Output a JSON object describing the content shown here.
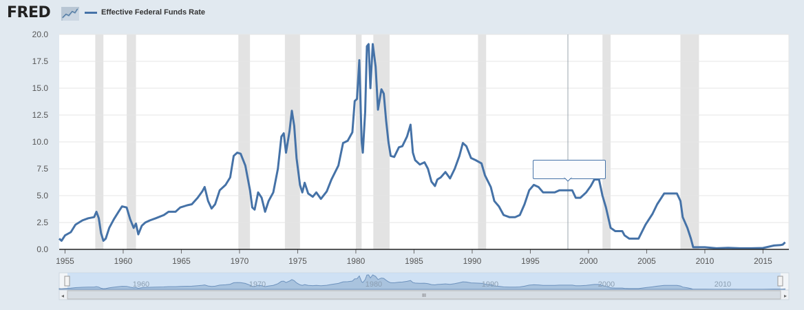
{
  "header": {
    "logo_text": "FRED",
    "legend_label": "Effective Federal Funds Rate",
    "series_color": "#4572a7"
  },
  "navigator": {
    "labels": [
      "1960",
      "1970",
      "1980",
      "1990",
      "2000",
      "2010"
    ],
    "scroll_grip": "III"
  },
  "chart_data": {
    "type": "line",
    "xlim": [
      1954.5,
      2016.9
    ],
    "ylim": [
      0,
      20
    ],
    "y_ticks": [
      "0.0",
      "2.5",
      "5.0",
      "7.5",
      "10.0",
      "12.5",
      "15.0",
      "17.5",
      "20.0"
    ],
    "x_ticks": [
      "1955",
      "1960",
      "1965",
      "1970",
      "1975",
      "1980",
      "1985",
      "1990",
      "1995",
      "2000",
      "2005",
      "2010",
      "2015"
    ],
    "grid": true,
    "legend": "top-left",
    "recessions": [
      [
        1957.6,
        1958.3
      ],
      [
        1960.3,
        1961.1
      ],
      [
        1969.9,
        1970.9
      ],
      [
        1973.9,
        1975.2
      ],
      [
        1980.0,
        1980.5
      ],
      [
        1981.5,
        1982.9
      ],
      [
        1990.5,
        1991.2
      ],
      [
        2001.2,
        2001.9
      ],
      [
        2007.9,
        2009.5
      ]
    ],
    "series": [
      {
        "values": [
          [
            1954.5,
            1.0
          ],
          [
            1954.7,
            0.8
          ],
          [
            1955.0,
            1.3
          ],
          [
            1955.5,
            1.6
          ],
          [
            1955.9,
            2.3
          ],
          [
            1956.5,
            2.7
          ],
          [
            1957.0,
            2.9
          ],
          [
            1957.5,
            3.0
          ],
          [
            1957.7,
            3.5
          ],
          [
            1957.9,
            2.9
          ],
          [
            1958.1,
            1.5
          ],
          [
            1958.3,
            0.8
          ],
          [
            1958.5,
            1.0
          ],
          [
            1958.8,
            2.0
          ],
          [
            1959.2,
            2.8
          ],
          [
            1959.6,
            3.5
          ],
          [
            1959.9,
            4.0
          ],
          [
            1960.3,
            3.9
          ],
          [
            1960.6,
            2.8
          ],
          [
            1960.9,
            2.0
          ],
          [
            1961.1,
            2.4
          ],
          [
            1961.3,
            1.4
          ],
          [
            1961.6,
            2.2
          ],
          [
            1961.9,
            2.5
          ],
          [
            1962.3,
            2.7
          ],
          [
            1962.8,
            2.9
          ],
          [
            1963.5,
            3.2
          ],
          [
            1963.9,
            3.5
          ],
          [
            1964.5,
            3.5
          ],
          [
            1964.9,
            3.9
          ],
          [
            1965.5,
            4.1
          ],
          [
            1965.9,
            4.2
          ],
          [
            1966.4,
            4.8
          ],
          [
            1966.8,
            5.4
          ],
          [
            1967.0,
            5.8
          ],
          [
            1967.3,
            4.5
          ],
          [
            1967.6,
            3.8
          ],
          [
            1967.9,
            4.2
          ],
          [
            1968.3,
            5.5
          ],
          [
            1968.8,
            6.0
          ],
          [
            1969.2,
            6.7
          ],
          [
            1969.5,
            8.7
          ],
          [
            1969.8,
            9.0
          ],
          [
            1970.1,
            8.9
          ],
          [
            1970.5,
            7.8
          ],
          [
            1970.9,
            5.5
          ],
          [
            1971.1,
            3.9
          ],
          [
            1971.3,
            3.7
          ],
          [
            1971.6,
            5.3
          ],
          [
            1971.9,
            4.8
          ],
          [
            1972.2,
            3.5
          ],
          [
            1972.5,
            4.5
          ],
          [
            1972.9,
            5.3
          ],
          [
            1973.3,
            7.5
          ],
          [
            1973.6,
            10.5
          ],
          [
            1973.8,
            10.8
          ],
          [
            1974.0,
            9.0
          ],
          [
            1974.3,
            11.0
          ],
          [
            1974.5,
            12.9
          ],
          [
            1974.7,
            11.5
          ],
          [
            1974.9,
            8.5
          ],
          [
            1975.2,
            6.0
          ],
          [
            1975.4,
            5.3
          ],
          [
            1975.6,
            6.2
          ],
          [
            1975.9,
            5.2
          ],
          [
            1976.3,
            4.9
          ],
          [
            1976.6,
            5.3
          ],
          [
            1977.0,
            4.7
          ],
          [
            1977.5,
            5.4
          ],
          [
            1977.9,
            6.5
          ],
          [
            1978.5,
            7.8
          ],
          [
            1978.9,
            9.9
          ],
          [
            1979.3,
            10.1
          ],
          [
            1979.7,
            10.9
          ],
          [
            1979.9,
            13.8
          ],
          [
            1980.1,
            14.0
          ],
          [
            1980.3,
            17.6
          ],
          [
            1980.5,
            10.0
          ],
          [
            1980.6,
            9.0
          ],
          [
            1980.8,
            12.8
          ],
          [
            1980.95,
            18.9
          ],
          [
            1981.1,
            19.1
          ],
          [
            1981.25,
            15.0
          ],
          [
            1981.45,
            19.1
          ],
          [
            1981.7,
            17.0
          ],
          [
            1981.9,
            13.0
          ],
          [
            1982.2,
            14.9
          ],
          [
            1982.4,
            14.5
          ],
          [
            1982.6,
            12.0
          ],
          [
            1982.8,
            10.0
          ],
          [
            1983.0,
            8.7
          ],
          [
            1983.3,
            8.6
          ],
          [
            1983.7,
            9.5
          ],
          [
            1984.0,
            9.6
          ],
          [
            1984.4,
            10.5
          ],
          [
            1984.7,
            11.6
          ],
          [
            1984.9,
            9.0
          ],
          [
            1985.1,
            8.3
          ],
          [
            1985.5,
            7.9
          ],
          [
            1985.9,
            8.1
          ],
          [
            1986.2,
            7.5
          ],
          [
            1986.5,
            6.3
          ],
          [
            1986.8,
            5.9
          ],
          [
            1987.0,
            6.5
          ],
          [
            1987.3,
            6.7
          ],
          [
            1987.7,
            7.2
          ],
          [
            1988.1,
            6.6
          ],
          [
            1988.5,
            7.5
          ],
          [
            1988.9,
            8.7
          ],
          [
            1989.2,
            9.9
          ],
          [
            1989.5,
            9.6
          ],
          [
            1989.9,
            8.5
          ],
          [
            1990.3,
            8.3
          ],
          [
            1990.8,
            8.0
          ],
          [
            1991.1,
            6.9
          ],
          [
            1991.6,
            5.8
          ],
          [
            1991.9,
            4.5
          ],
          [
            1992.3,
            4.0
          ],
          [
            1992.7,
            3.2
          ],
          [
            1993.2,
            3.0
          ],
          [
            1993.7,
            3.0
          ],
          [
            1994.1,
            3.2
          ],
          [
            1994.5,
            4.2
          ],
          [
            1994.9,
            5.5
          ],
          [
            1995.3,
            6.0
          ],
          [
            1995.7,
            5.8
          ],
          [
            1996.1,
            5.3
          ],
          [
            1996.6,
            5.3
          ],
          [
            1997.1,
            5.3
          ],
          [
            1997.5,
            5.5
          ],
          [
            1998.0,
            5.5
          ],
          [
            1998.6,
            5.5
          ],
          [
            1998.9,
            4.8
          ],
          [
            1999.3,
            4.8
          ],
          [
            1999.8,
            5.3
          ],
          [
            2000.2,
            5.9
          ],
          [
            2000.5,
            6.5
          ],
          [
            2000.9,
            6.5
          ],
          [
            2001.2,
            5.0
          ],
          [
            2001.5,
            3.9
          ],
          [
            2001.9,
            2.0
          ],
          [
            2002.3,
            1.7
          ],
          [
            2002.9,
            1.7
          ],
          [
            2003.1,
            1.3
          ],
          [
            2003.5,
            1.0
          ],
          [
            2004.3,
            1.0
          ],
          [
            2004.9,
            2.3
          ],
          [
            2005.5,
            3.3
          ],
          [
            2005.9,
            4.2
          ],
          [
            2006.5,
            5.2
          ],
          [
            2007.0,
            5.2
          ],
          [
            2007.6,
            5.2
          ],
          [
            2007.9,
            4.5
          ],
          [
            2008.1,
            3.0
          ],
          [
            2008.5,
            2.0
          ],
          [
            2008.8,
            1.0
          ],
          [
            2009.0,
            0.2
          ],
          [
            2009.5,
            0.2
          ],
          [
            2010.0,
            0.2
          ],
          [
            2011.0,
            0.1
          ],
          [
            2012.0,
            0.15
          ],
          [
            2013.0,
            0.1
          ],
          [
            2014.0,
            0.1
          ],
          [
            2015.0,
            0.13
          ],
          [
            2015.95,
            0.36
          ],
          [
            2016.5,
            0.4
          ],
          [
            2016.7,
            0.45
          ],
          [
            2016.9,
            0.66
          ]
        ]
      }
    ]
  }
}
